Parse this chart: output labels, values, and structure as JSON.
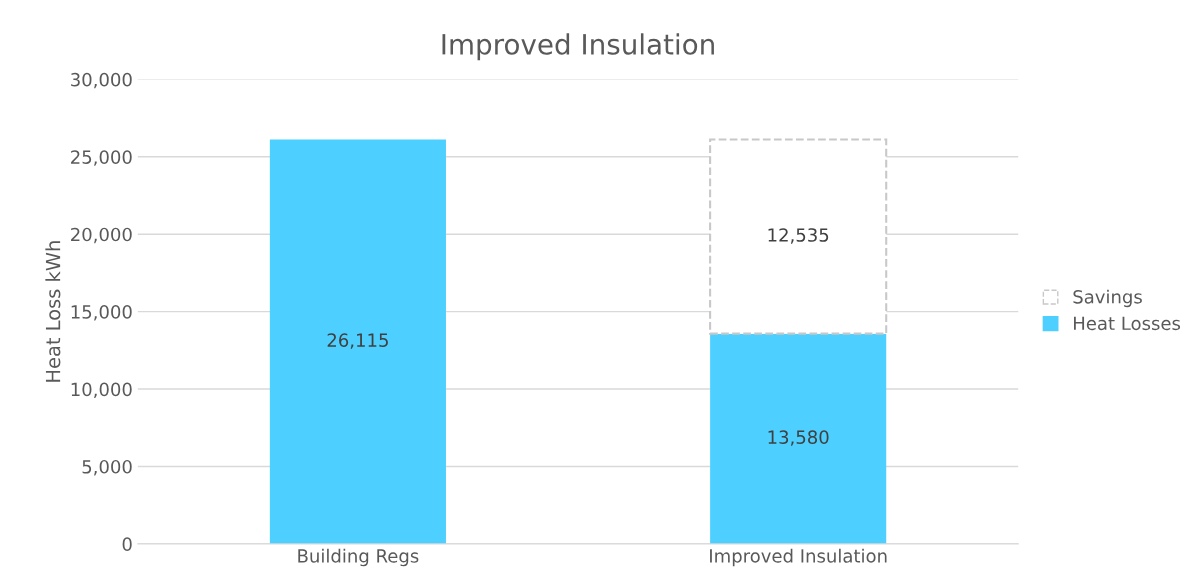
{
  "chart_data": {
    "type": "bar",
    "title": "Improved Insulation",
    "ylabel": "Heat Loss kWh",
    "categories": [
      "Building Regs",
      "Improved Insulation"
    ],
    "stacked": true,
    "series": [
      {
        "name": "Heat Losses",
        "color": "#4dcfff",
        "values": [
          26115,
          13580
        ],
        "value_labels": [
          "26,115",
          "13,580"
        ]
      },
      {
        "name": "Savings",
        "color": "#ffffff",
        "line_style": "dashed",
        "values": [
          null,
          12535
        ],
        "value_labels": [
          null,
          "12,535"
        ]
      }
    ],
    "ylim": [
      0,
      30000
    ],
    "yticks": [
      0,
      {
        "value": 5000,
        "label": "5,000"
      },
      {
        "value": 10000,
        "label": "10,000"
      },
      {
        "value": 15000,
        "label": "15,000"
      },
      {
        "value": 20000,
        "label": "20,000"
      },
      {
        "value": 25000,
        "label": "25,000"
      },
      {
        "value": 30000,
        "label": "30,000"
      }
    ],
    "grid": "y",
    "legend": "right"
  }
}
